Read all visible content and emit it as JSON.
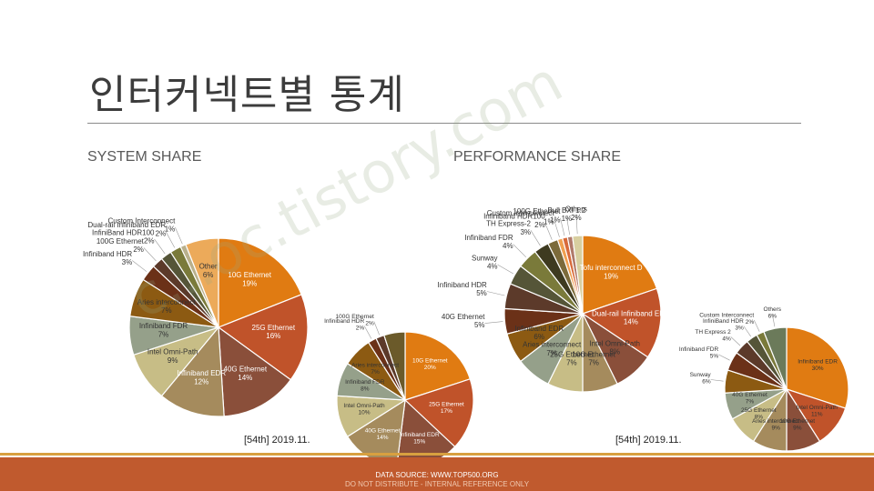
{
  "slide": {
    "title": "인터커넥트별 통계",
    "watermark": "c...oc.tistory.com",
    "footer": {
      "source": "DATA SOURCE: WWW.TOP500.ORG",
      "note": "DO NOT DISTRIBUTE - INTERNAL REFERENCE ONLY"
    },
    "sections": {
      "system": {
        "heading": "SYSTEM SHARE",
        "period": "[54th] 2019.11."
      },
      "performance": {
        "heading": "PERFORMANCE SHARE",
        "period": "[54th] 2019.11."
      }
    }
  },
  "chart_data": [
    {
      "id": "system-share-main",
      "type": "pie",
      "title": "",
      "slices": [
        {
          "label": "10G Ethernet",
          "value": 19,
          "display": "19%",
          "color": "#e07b12",
          "text_color": "#ffffff"
        },
        {
          "label": "25G Ethernet",
          "value": 16,
          "display": "16%",
          "color": "#c0532a",
          "text_color": "#ffffff"
        },
        {
          "label": "40G Ethernet",
          "value": 14,
          "display": "14%",
          "color": "#8a4f3a",
          "text_color": "#ffffff"
        },
        {
          "label": "Infiniband EDR",
          "value": 12,
          "display": "12%",
          "color": "#a58b5d",
          "text_color": "#ffffff"
        },
        {
          "label": "Intel Omni-Path",
          "value": 9,
          "display": "9%",
          "color": "#c7bd86",
          "text_color": "#333333"
        },
        {
          "label": "Infiniband FDR",
          "value": 7,
          "display": "7%",
          "color": "#95a08a",
          "text_color": "#333333"
        },
        {
          "label": "Aries interconnect",
          "value": 7,
          "display": "7%",
          "color": "#8c5a12",
          "text_color": "#333333"
        },
        {
          "label": "Infiniband HDR",
          "value": 3,
          "display": "3%",
          "color": "#6b3118",
          "text_color": "#333333"
        },
        {
          "label": "100G Ethernet",
          "value": 2,
          "display": "2%",
          "color": "#5c3a2a",
          "text_color": "#333333"
        },
        {
          "label": "InfiniBand HDR100",
          "value": 2,
          "display": "2%",
          "color": "#555538",
          "text_color": "#333333"
        },
        {
          "label": "Dual-rail Infiniband EDR",
          "value": 2,
          "display": "2%",
          "color": "#7a7a3a",
          "text_color": "#333333"
        },
        {
          "label": "Custom Interconnect",
          "value": 1,
          "display": "1%",
          "color": "#b9b08c",
          "text_color": "#333333"
        },
        {
          "label": "Other",
          "value": 6,
          "display": "6%",
          "color": "#ecaa5a",
          "text_color": "#333333"
        }
      ]
    },
    {
      "id": "system-share-secondary",
      "type": "pie",
      "title": "",
      "slices": [
        {
          "label": "10G Ethernet",
          "value": 20,
          "display": "20%",
          "color": "#e07b12",
          "text_color": "#ffffff"
        },
        {
          "label": "25G Ethernet",
          "value": 17,
          "display": "17%",
          "color": "#c0532a",
          "text_color": "#ffffff"
        },
        {
          "label": "Infiniband EDR",
          "value": 15,
          "display": "15%",
          "color": "#8a4f3a",
          "text_color": "#ffffff"
        },
        {
          "label": "40G Ethernet",
          "value": 14,
          "display": "14%",
          "color": "#a58b5d",
          "text_color": "#ffffff"
        },
        {
          "label": "Intel Omni-Path",
          "value": 10,
          "display": "10%",
          "color": "#c7bd86",
          "text_color": "#333333"
        },
        {
          "label": "Infiniband FDR",
          "value": 8,
          "display": "8%",
          "color": "#95a08a",
          "text_color": "#333333"
        },
        {
          "label": "Aries interconnect",
          "value": 7,
          "display": "7%",
          "color": "#8c5a12",
          "text_color": "#333333"
        },
        {
          "label": "Infiniband HDR",
          "value": 2,
          "display": "2%",
          "color": "#6b3118",
          "text_color": "#333333"
        },
        {
          "label": "100G Ethernet",
          "value": 2,
          "display": "2%",
          "color": "#5c3a2a",
          "text_color": "#333333"
        },
        {
          "label": "",
          "value": 5,
          "display": "",
          "color": "#6b5a2a",
          "text_color": "#333333"
        }
      ]
    },
    {
      "id": "performance-share-main",
      "type": "pie",
      "title": "",
      "slices": [
        {
          "label": "Tofu interconnect D",
          "value": 19,
          "display": "19%",
          "color": "#e07b12",
          "text_color": "#ffffff"
        },
        {
          "label": "Dual-rail Infiniband EDR",
          "value": 14,
          "display": "14%",
          "color": "#c0532a",
          "text_color": "#ffffff"
        },
        {
          "label": "Intel Omni-Path",
          "value": 8,
          "display": "8%",
          "color": "#8a4f3a",
          "text_color": "#333333"
        },
        {
          "label": "10G Ethernet",
          "value": 7,
          "display": "7%",
          "color": "#a58b5d",
          "text_color": "#333333"
        },
        {
          "label": "25G Ethernet",
          "value": 7,
          "display": "7%",
          "color": "#c7bd86",
          "text_color": "#333333"
        },
        {
          "label": "Aries interconnect",
          "value": 7,
          "display": "7%",
          "color": "#95a08a",
          "text_color": "#333333"
        },
        {
          "label": "Infiniband EDR",
          "value": 6,
          "display": "6%",
          "color": "#8c5a12",
          "text_color": "#333333"
        },
        {
          "label": "40G Ethernet",
          "value": 5,
          "display": "5%",
          "color": "#6b3118",
          "text_color": "#333333"
        },
        {
          "label": "Infiniband HDR",
          "value": 5,
          "display": "5%",
          "color": "#5c3a2a",
          "text_color": "#333333"
        },
        {
          "label": "Sunway",
          "value": 4,
          "display": "4%",
          "color": "#555538",
          "text_color": "#333333"
        },
        {
          "label": "Infiniband FDR",
          "value": 4,
          "display": "4%",
          "color": "#7a7a3a",
          "text_color": "#333333"
        },
        {
          "label": "TH Express-2",
          "value": 3,
          "display": "3%",
          "color": "#3e3a20",
          "text_color": "#333333"
        },
        {
          "label": "Infiniband HDR100",
          "value": 2,
          "display": "2%",
          "color": "#7c6a3a",
          "text_color": "#333333"
        },
        {
          "label": "Custom Interconnect",
          "value": 1,
          "display": "1%",
          "color": "#f0a050",
          "text_color": "#333333"
        },
        {
          "label": "100G Ethernet",
          "value": 1,
          "display": "1%",
          "color": "#d86a3a",
          "text_color": "#333333"
        },
        {
          "label": "Bull BXI 1.2",
          "value": 1,
          "display": "1%",
          "color": "#b07a6a",
          "text_color": "#333333"
        },
        {
          "label": "Others",
          "value": 2,
          "display": "2%",
          "color": "#d8cfa0",
          "text_color": "#333333"
        }
      ]
    },
    {
      "id": "performance-share-secondary",
      "type": "pie",
      "title": "",
      "slices": [
        {
          "label": "Infiniband EDR",
          "value": 30,
          "display": "30%",
          "color": "#e07b12",
          "text_color": "#333333"
        },
        {
          "label": "Intel Omni-Path",
          "value": 11,
          "display": "11%",
          "color": "#c0532a",
          "text_color": "#333333"
        },
        {
          "label": "10G Ethernet",
          "value": 9,
          "display": "9%",
          "color": "#8a4f3a",
          "text_color": "#333333"
        },
        {
          "label": "Aries interconnect",
          "value": 9,
          "display": "9%",
          "color": "#a58b5d",
          "text_color": "#333333"
        },
        {
          "label": "25G Ethernet",
          "value": 8,
          "display": "8%",
          "color": "#c7bd86",
          "text_color": "#333333"
        },
        {
          "label": "40G Ethernet",
          "value": 7,
          "display": "7%",
          "color": "#95a08a",
          "text_color": "#333333"
        },
        {
          "label": "Sunway",
          "value": 6,
          "display": "6%",
          "color": "#8c5a12",
          "text_color": "#333333"
        },
        {
          "label": "Infiniband FDR",
          "value": 5,
          "display": "5%",
          "color": "#6b3118",
          "text_color": "#333333"
        },
        {
          "label": "TH Express 2",
          "value": 4,
          "display": "4%",
          "color": "#5c3a2a",
          "text_color": "#333333"
        },
        {
          "label": "InfiniBand HDR",
          "value": 3,
          "display": "3%",
          "color": "#555538",
          "text_color": "#333333"
        },
        {
          "label": "Custom Interconnect",
          "value": 2,
          "display": "2%",
          "color": "#7a7a3a",
          "text_color": "#333333"
        },
        {
          "label": "Others",
          "value": 6,
          "display": "6%",
          "color": "#6b7a5a",
          "text_color": "#333333"
        }
      ]
    }
  ]
}
